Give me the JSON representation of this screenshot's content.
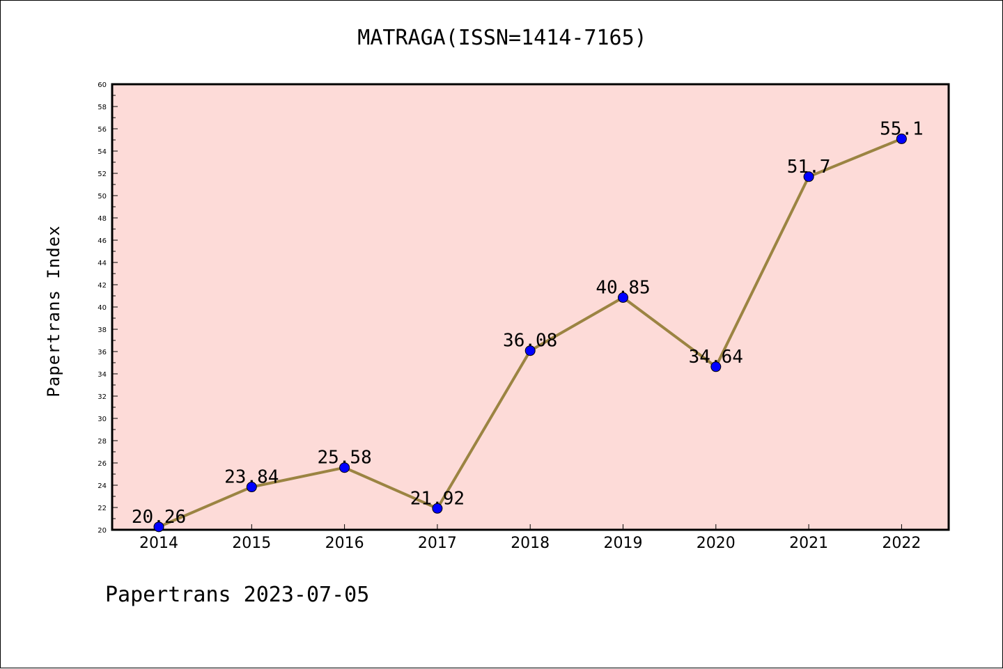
{
  "chart_data": {
    "type": "line",
    "title": "MATRAGA(ISSN=1414-7165)",
    "xlabel": "",
    "ylabel": "Papertrans Index",
    "categories": [
      "2014",
      "2015",
      "2016",
      "2017",
      "2018",
      "2019",
      "2020",
      "2021",
      "2022"
    ],
    "values": [
      20.26,
      23.84,
      25.58,
      21.92,
      36.08,
      40.85,
      34.64,
      51.7,
      55.1
    ],
    "data_labels": [
      "20.26",
      "23.84",
      "25.58",
      "21.92",
      "36.08",
      "40.85",
      "34.64",
      "51.7",
      "55.1"
    ],
    "ylim": [
      20,
      60
    ],
    "ytick_step": 2,
    "grid": false,
    "colors": {
      "plot_background": "#fddbd8",
      "line": "#9b8442",
      "marker": "#0000ff"
    }
  },
  "footer": "Papertrans 2023-07-05"
}
